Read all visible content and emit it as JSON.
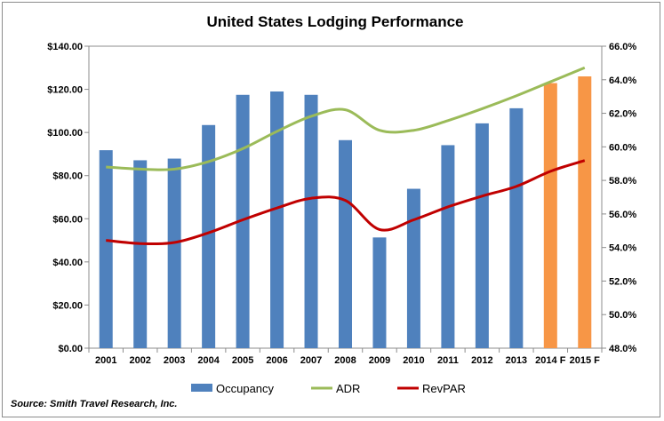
{
  "chart_data": {
    "type": "bar",
    "title": "United States Lodging Performance",
    "categories": [
      "2001",
      "2002",
      "2003",
      "2004",
      "2005",
      "2006",
      "2007",
      "2008",
      "2009",
      "2010",
      "2011",
      "2012",
      "2013",
      "2014 F",
      "2015 F"
    ],
    "series": [
      {
        "name": "Occupancy",
        "type": "bar",
        "axis": "right",
        "values": [
          59.8,
          59.2,
          59.3,
          61.3,
          63.1,
          63.3,
          63.1,
          60.4,
          54.6,
          57.5,
          60.1,
          61.4,
          62.3,
          63.8,
          64.2
        ],
        "color": "#4f81bd",
        "forecast_color": "#f79646"
      },
      {
        "name": "ADR",
        "type": "line",
        "axis": "left",
        "values": [
          84.0,
          83.0,
          83.0,
          86.5,
          92.5,
          100.5,
          107.5,
          110.5,
          101.0,
          101.0,
          105.5,
          111.0,
          117.0,
          123.5,
          130.0
        ],
        "color": "#9bbb59"
      },
      {
        "name": "RevPAR",
        "type": "line",
        "axis": "left",
        "values": [
          50.0,
          48.5,
          49.0,
          53.5,
          59.5,
          65.0,
          69.5,
          68.5,
          55.0,
          59.5,
          65.5,
          70.5,
          75.0,
          82.0,
          87.0
        ],
        "color": "#c00000"
      }
    ],
    "left_axis": {
      "min": 0,
      "max": 140,
      "step": 20,
      "tick_labels": [
        "$0.00",
        "$20.00",
        "$40.00",
        "$60.00",
        "$80.00",
        "$100.00",
        "$120.00",
        "$140.00"
      ]
    },
    "right_axis": {
      "min": 48,
      "max": 66,
      "step": 2,
      "tick_labels": [
        "48.0%",
        "50.0%",
        "52.0%",
        "54.0%",
        "56.0%",
        "58.0%",
        "60.0%",
        "62.0%",
        "64.0%",
        "66.0%"
      ]
    },
    "grid": false,
    "legend_position": "bottom",
    "source_note": "Source: Smith Travel Research, Inc."
  }
}
